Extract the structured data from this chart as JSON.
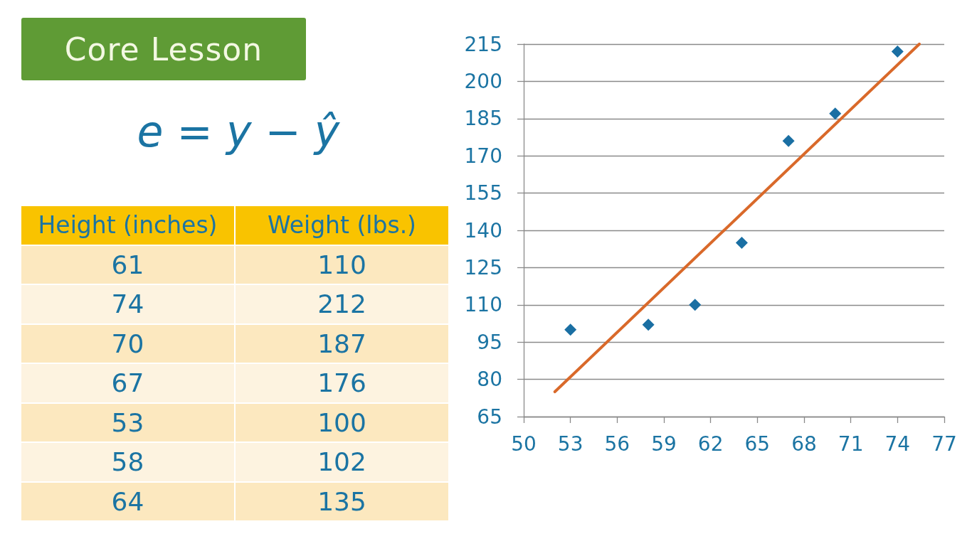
{
  "chart_data": [
    {
      "type": "other",
      "title": "Core Lesson",
      "annotations": [
        "e = y − ŷ"
      ]
    },
    {
      "type": "other",
      "categories": [
        "Height (inches)",
        "Weight (lbs.)"
      ],
      "annotations": [
        "61",
        "110",
        "74",
        "212",
        "70",
        "187",
        "67",
        "176",
        "53",
        "100",
        "58",
        "102",
        "64",
        "135"
      ]
    },
    {
      "type": "scatter",
      "xlim": [
        50,
        77
      ],
      "xticks": [
        50,
        53,
        56,
        59,
        62,
        65,
        68,
        71,
        74,
        77
      ],
      "ylim": [
        65,
        215
      ],
      "yticks": [
        65,
        80,
        95,
        110,
        125,
        140,
        155,
        170,
        185,
        200,
        215
      ],
      "grid": "y",
      "marker": "diamond",
      "series": [
        {
          "type": "scatter",
          "color": "#1a6fa3",
          "x": [
            61,
            74,
            70,
            67,
            53,
            58,
            64
          ],
          "values": [
            110,
            212,
            187,
            176,
            100,
            102,
            135
          ]
        },
        {
          "type": "line",
          "color": "#d9692a",
          "marker": "none",
          "x": [
            52,
            75.4
          ],
          "values": [
            75,
            215
          ]
        }
      ]
    }
  ]
}
